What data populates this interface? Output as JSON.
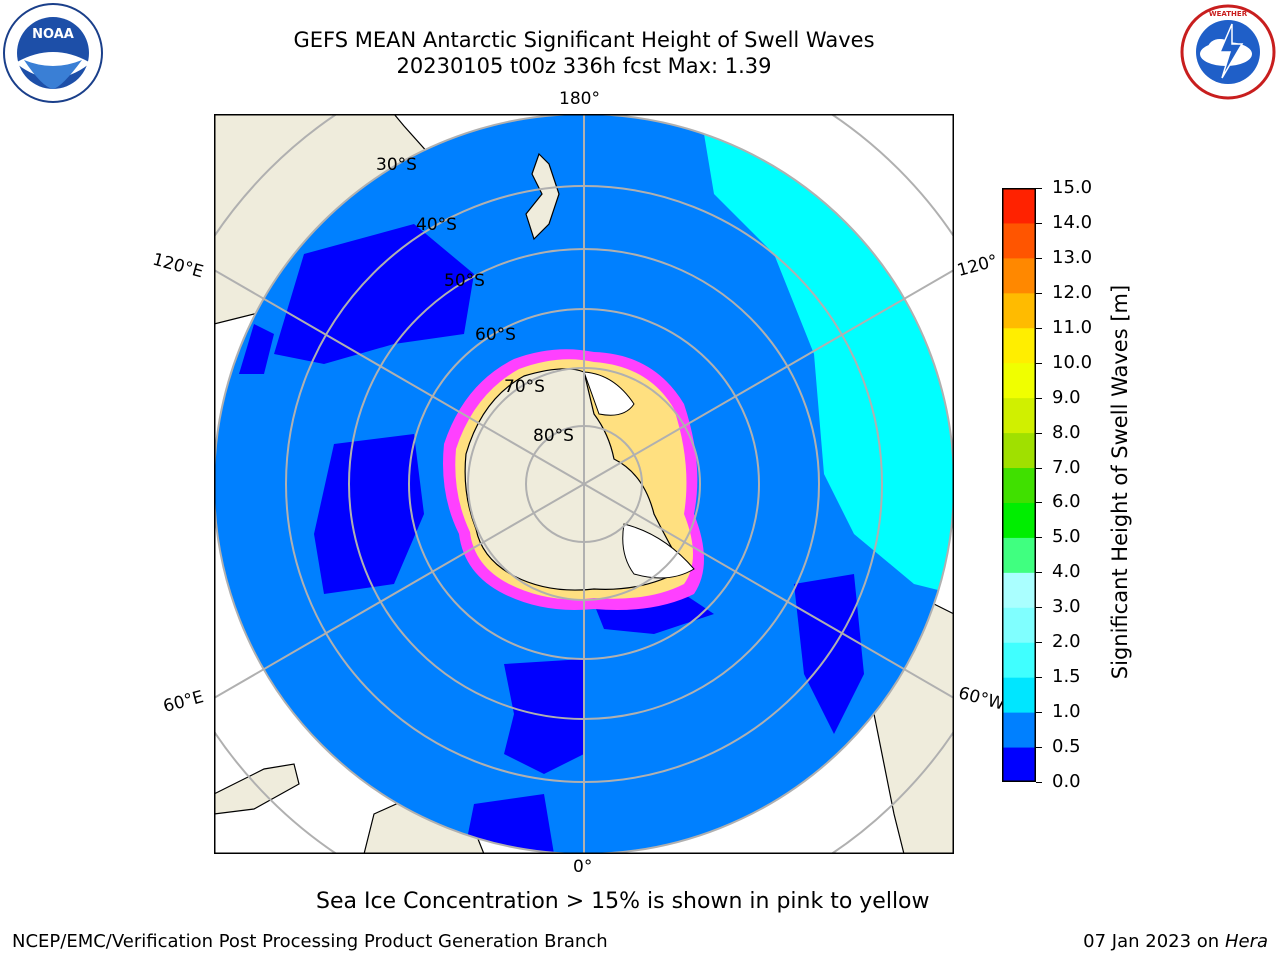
{
  "header": {
    "title_line1": "GEFS MEAN Antarctic Significant Height of Swell Waves",
    "title_line2": "20230105 t00z 336h fcst   Max: 1.39"
  },
  "logos": {
    "left": {
      "name": "NOAA",
      "text": "NOAA",
      "ring_text": "NATIONAL OCEANIC AND ATMOSPHERIC ADMINISTRATION · U.S. DEPARTMENT OF COMMERCE"
    },
    "right": {
      "name": "National Weather Service",
      "ring_text": "NATIONAL WEATHER SERVICE"
    }
  },
  "map": {
    "projection": "south-polar-stereographic",
    "longitude_labels": [
      "180°",
      "120°E",
      "120°",
      "60°E",
      "60°W",
      "0°"
    ],
    "latitude_labels": [
      "30°S",
      "40°S",
      "50°S",
      "60°S",
      "70°S",
      "80°S"
    ],
    "colors": {
      "land": "#efecdc",
      "ice_free_ocean": "#0080ff",
      "low_swell": "#0000ff",
      "mid_swell": "#00ffff",
      "ice": "#ff40ff",
      "ice_edge_yellow": "#ffd040",
      "grid": "#b0b0b0"
    }
  },
  "colorbar": {
    "label": "Significant Height of Swell Waves [m]",
    "ticks": [
      "0.0",
      "0.5",
      "1.0",
      "1.5",
      "2.0",
      "3.0",
      "4.0",
      "5.0",
      "6.0",
      "7.0",
      "8.0",
      "9.0",
      "10.0",
      "11.0",
      "12.0",
      "13.0",
      "14.0",
      "15.0"
    ],
    "colors": [
      "#0000ff",
      "#0080ff",
      "#00e6ff",
      "#40ffff",
      "#80ffff",
      "#aaffff",
      "#40ff80",
      "#00ee00",
      "#40e000",
      "#a0e000",
      "#d0f000",
      "#f0ff00",
      "#ffee00",
      "#ffbb00",
      "#ff8800",
      "#ff5500",
      "#ff2200",
      "#ff0000"
    ]
  },
  "note": "Sea Ice Concentration > 15% is shown in pink to yellow",
  "footer": {
    "left": "NCEP/EMC/Verification Post Processing Product Generation Branch",
    "right_prefix": "07 Jan 2023 on",
    "right_host": "Hera"
  }
}
